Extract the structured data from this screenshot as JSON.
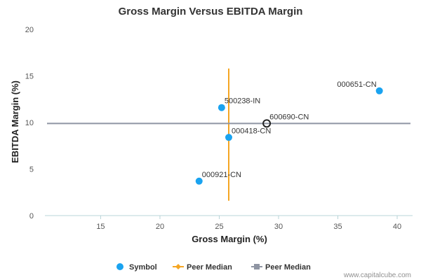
{
  "chart_data": {
    "type": "scatter",
    "title": "Gross Margin Versus EBITDA Margin",
    "xlabel": "Gross Margin (%)",
    "ylabel": "EBITDA Margin (%)",
    "xlim": [
      10.3,
      41.3
    ],
    "ylim": [
      0,
      20
    ],
    "x_ticks": [
      15,
      20,
      25,
      30,
      35,
      40
    ],
    "y_ticks": [
      0,
      5,
      10,
      15,
      20
    ],
    "grid": false,
    "points": [
      {
        "label": "500238-IN",
        "x": 25.2,
        "y": 11.6
      },
      {
        "label": "000651-CN",
        "x": 38.5,
        "y": 13.4
      },
      {
        "label": "000418-CN",
        "x": 25.8,
        "y": 8.4
      },
      {
        "label": "000921-CN",
        "x": 23.3,
        "y": 3.7
      }
    ],
    "highlight": {
      "label": "600690-CN",
      "x": 29.0,
      "y": 9.9
    },
    "peer_median_x": 25.8,
    "peer_median_y": 9.9,
    "peer_median_x_span": [
      1.6,
      15.8
    ],
    "legend": [
      {
        "label": "Symbol",
        "marker": "circle"
      },
      {
        "label": "Peer Median",
        "marker": "diamond-line"
      },
      {
        "label": "Peer Median",
        "marker": "square-line"
      }
    ],
    "legend_position": "bottom",
    "colors": {
      "point": "#1aa3f0",
      "highlight_stroke": "#222222",
      "median_vertical": "#f5a623",
      "median_horizontal": "#8f95a3",
      "axis": "#b8d4d8"
    }
  },
  "credit": "www.capitalcube.com"
}
